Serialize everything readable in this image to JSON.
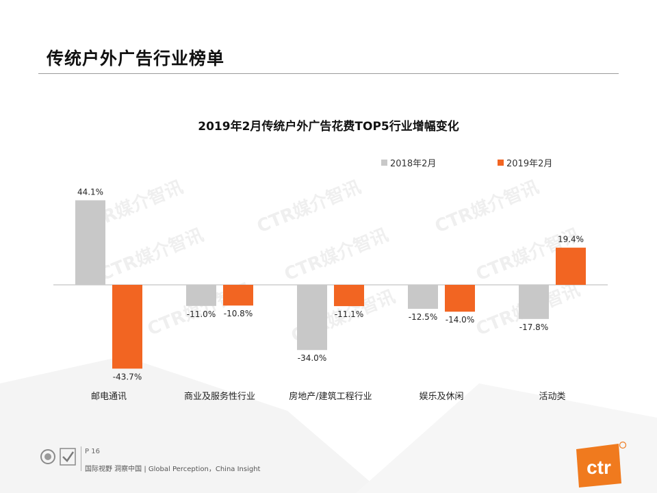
{
  "page": {
    "title": "传统户外广告行业榜单",
    "page_number": "P 16",
    "footer_slogan": "国际视野 洞察中国 | Global Perception，China Insight",
    "logo_text": "ctr",
    "watermark_text": "CTR媒介智讯"
  },
  "colors": {
    "series_2018": "#c8c8c8",
    "series_2019": "#f26522",
    "brand_orange": "#f07a1e"
  },
  "chart_data": {
    "type": "bar",
    "title": "2019年2月传统户外广告花费TOP5行业增幅变化",
    "categories": [
      "邮电通讯",
      "商业及服务性行业",
      "房地产/建筑工程行业",
      "娱乐及休闲",
      "活动类"
    ],
    "series": [
      {
        "name": "2018年2月",
        "values": [
          44.1,
          -11.0,
          -34.0,
          -12.5,
          -17.8
        ],
        "labels": [
          "44.1%",
          "-11.0%",
          "-34.0%",
          "-12.5%",
          "-17.8%"
        ]
      },
      {
        "name": "2019年2月",
        "values": [
          -43.7,
          -10.8,
          -11.1,
          -14.0,
          19.4
        ],
        "labels": [
          "-43.7%",
          "-10.8%",
          "-11.1%",
          "-14.0%",
          "19.4%"
        ]
      }
    ],
    "ylim": [
      -50,
      50
    ],
    "unit": "%",
    "legend_position": "top-right",
    "grid": false,
    "xlabel": "",
    "ylabel": ""
  }
}
